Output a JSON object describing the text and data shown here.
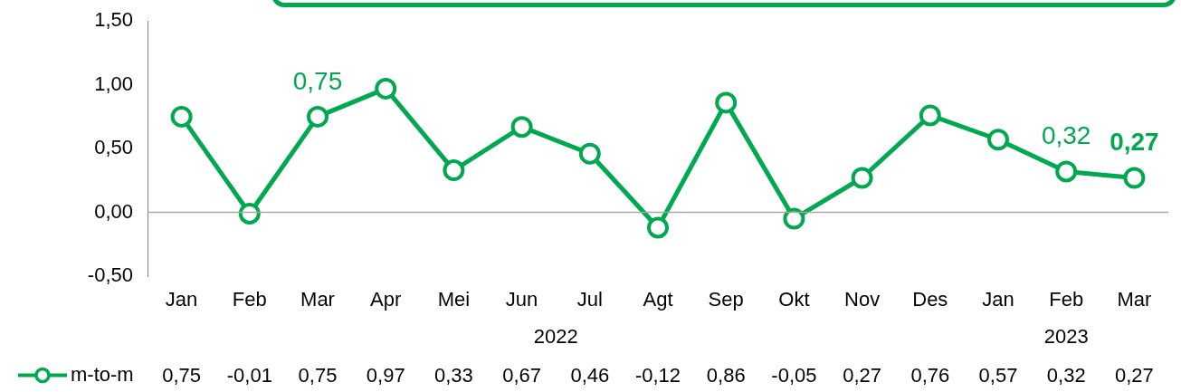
{
  "chart_data": {
    "type": "line",
    "categories": [
      "Jan",
      "Feb",
      "Mar",
      "Apr",
      "Mei",
      "Jun",
      "Jul",
      "Agt",
      "Sep",
      "Okt",
      "Nov",
      "Des",
      "Jan",
      "Feb",
      "Mar"
    ],
    "series": [
      {
        "name": "m-to-m",
        "color": "#00a84f",
        "values": [
          0.75,
          -0.01,
          0.75,
          0.97,
          0.33,
          0.67,
          0.46,
          -0.12,
          0.86,
          -0.05,
          0.27,
          0.76,
          0.57,
          0.32,
          0.27
        ],
        "value_labels": [
          "0,75",
          "-0,01",
          "0,75",
          "0,97",
          "0,33",
          "0,67",
          "0,46",
          "-0,12",
          "0,86",
          "-0,05",
          "0,27",
          "0,76",
          "0,57",
          "0,32",
          "0,27"
        ]
      }
    ],
    "ylim": [
      -0.5,
      1.5
    ],
    "yticks": [
      {
        "value": -0.5,
        "label": "-0,50"
      },
      {
        "value": 0,
        "label": "0,00"
      },
      {
        "value": 0.5,
        "label": "0,50"
      },
      {
        "value": 1,
        "label": "1,00"
      },
      {
        "value": 1.5,
        "label": "1,50"
      }
    ],
    "annotations": [
      "2022",
      "2023",
      {
        "text": "0,75",
        "y": 0.75
      },
      {
        "text": "0,32",
        "y": 0.32
      },
      {
        "text": "0,27",
        "y": 0.27
      }
    ],
    "ref_lines": [
      {
        "axis": "y",
        "value": 0,
        "color": "#a6a6a6"
      }
    ],
    "grid": false,
    "legend": "bottom",
    "marker": "circle",
    "line_style": "solid"
  }
}
